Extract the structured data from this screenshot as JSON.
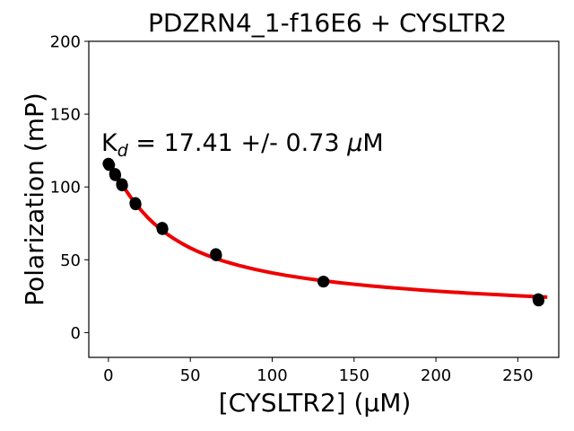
{
  "chart_data": {
    "type": "scatter",
    "title": "PDZRN4_1-f16E6 + CYSLTR2",
    "xlabel": "[CYSLTR2] (μM)",
    "ylabel": "Polarization (mP)",
    "xlim": [
      -12,
      275
    ],
    "ylim": [
      -17,
      200
    ],
    "xticks": [
      0,
      50,
      100,
      150,
      200,
      250
    ],
    "yticks": [
      0,
      50,
      100,
      150,
      200
    ],
    "annotation": {
      "prefix": "K",
      "subscript": "d",
      "text": " = 17.41 +/- 0.73 ",
      "unit_italic": "μ",
      "unit": "M"
    },
    "grid": false,
    "series": [
      {
        "kind": "points",
        "color": "#000000",
        "x": [
          0,
          0.5,
          4,
          4.2,
          8.2,
          8.4,
          16.4,
          16.6,
          32.8,
          33,
          65.6,
          65.8,
          131.2,
          131.4,
          262.5,
          262.7
        ],
        "y": [
          116,
          115,
          109,
          108,
          102,
          101,
          89,
          88,
          72,
          71,
          54,
          53,
          35,
          35,
          23,
          22
        ]
      },
      {
        "kind": "fit-curve",
        "color": "#ee0000",
        "x": [
          0,
          2,
          4,
          6,
          8,
          10,
          12,
          14,
          16,
          18,
          20,
          24,
          28,
          32,
          36,
          40,
          45,
          50,
          55,
          60,
          65,
          70,
          80,
          90,
          100,
          110,
          120,
          130,
          140,
          150,
          160,
          170,
          180,
          190,
          200,
          210,
          220,
          230,
          240,
          250,
          260,
          268
        ],
        "y": [
          116.5,
          112.7,
          109.2,
          105.7,
          102.2,
          98.8,
          95.5,
          92.3,
          89.4,
          86.6,
          83.9,
          79.0,
          74.7,
          70.9,
          67.5,
          64.5,
          61.1,
          58.1,
          55.5,
          53.2,
          51.1,
          49.2,
          46.0,
          43.3,
          41.0,
          39.0,
          37.3,
          35.8,
          34.4,
          33.2,
          32.1,
          31.1,
          30.2,
          29.3,
          28.5,
          27.8,
          27.1,
          26.5,
          25.9,
          25.3,
          24.8,
          24.4
        ]
      }
    ]
  }
}
